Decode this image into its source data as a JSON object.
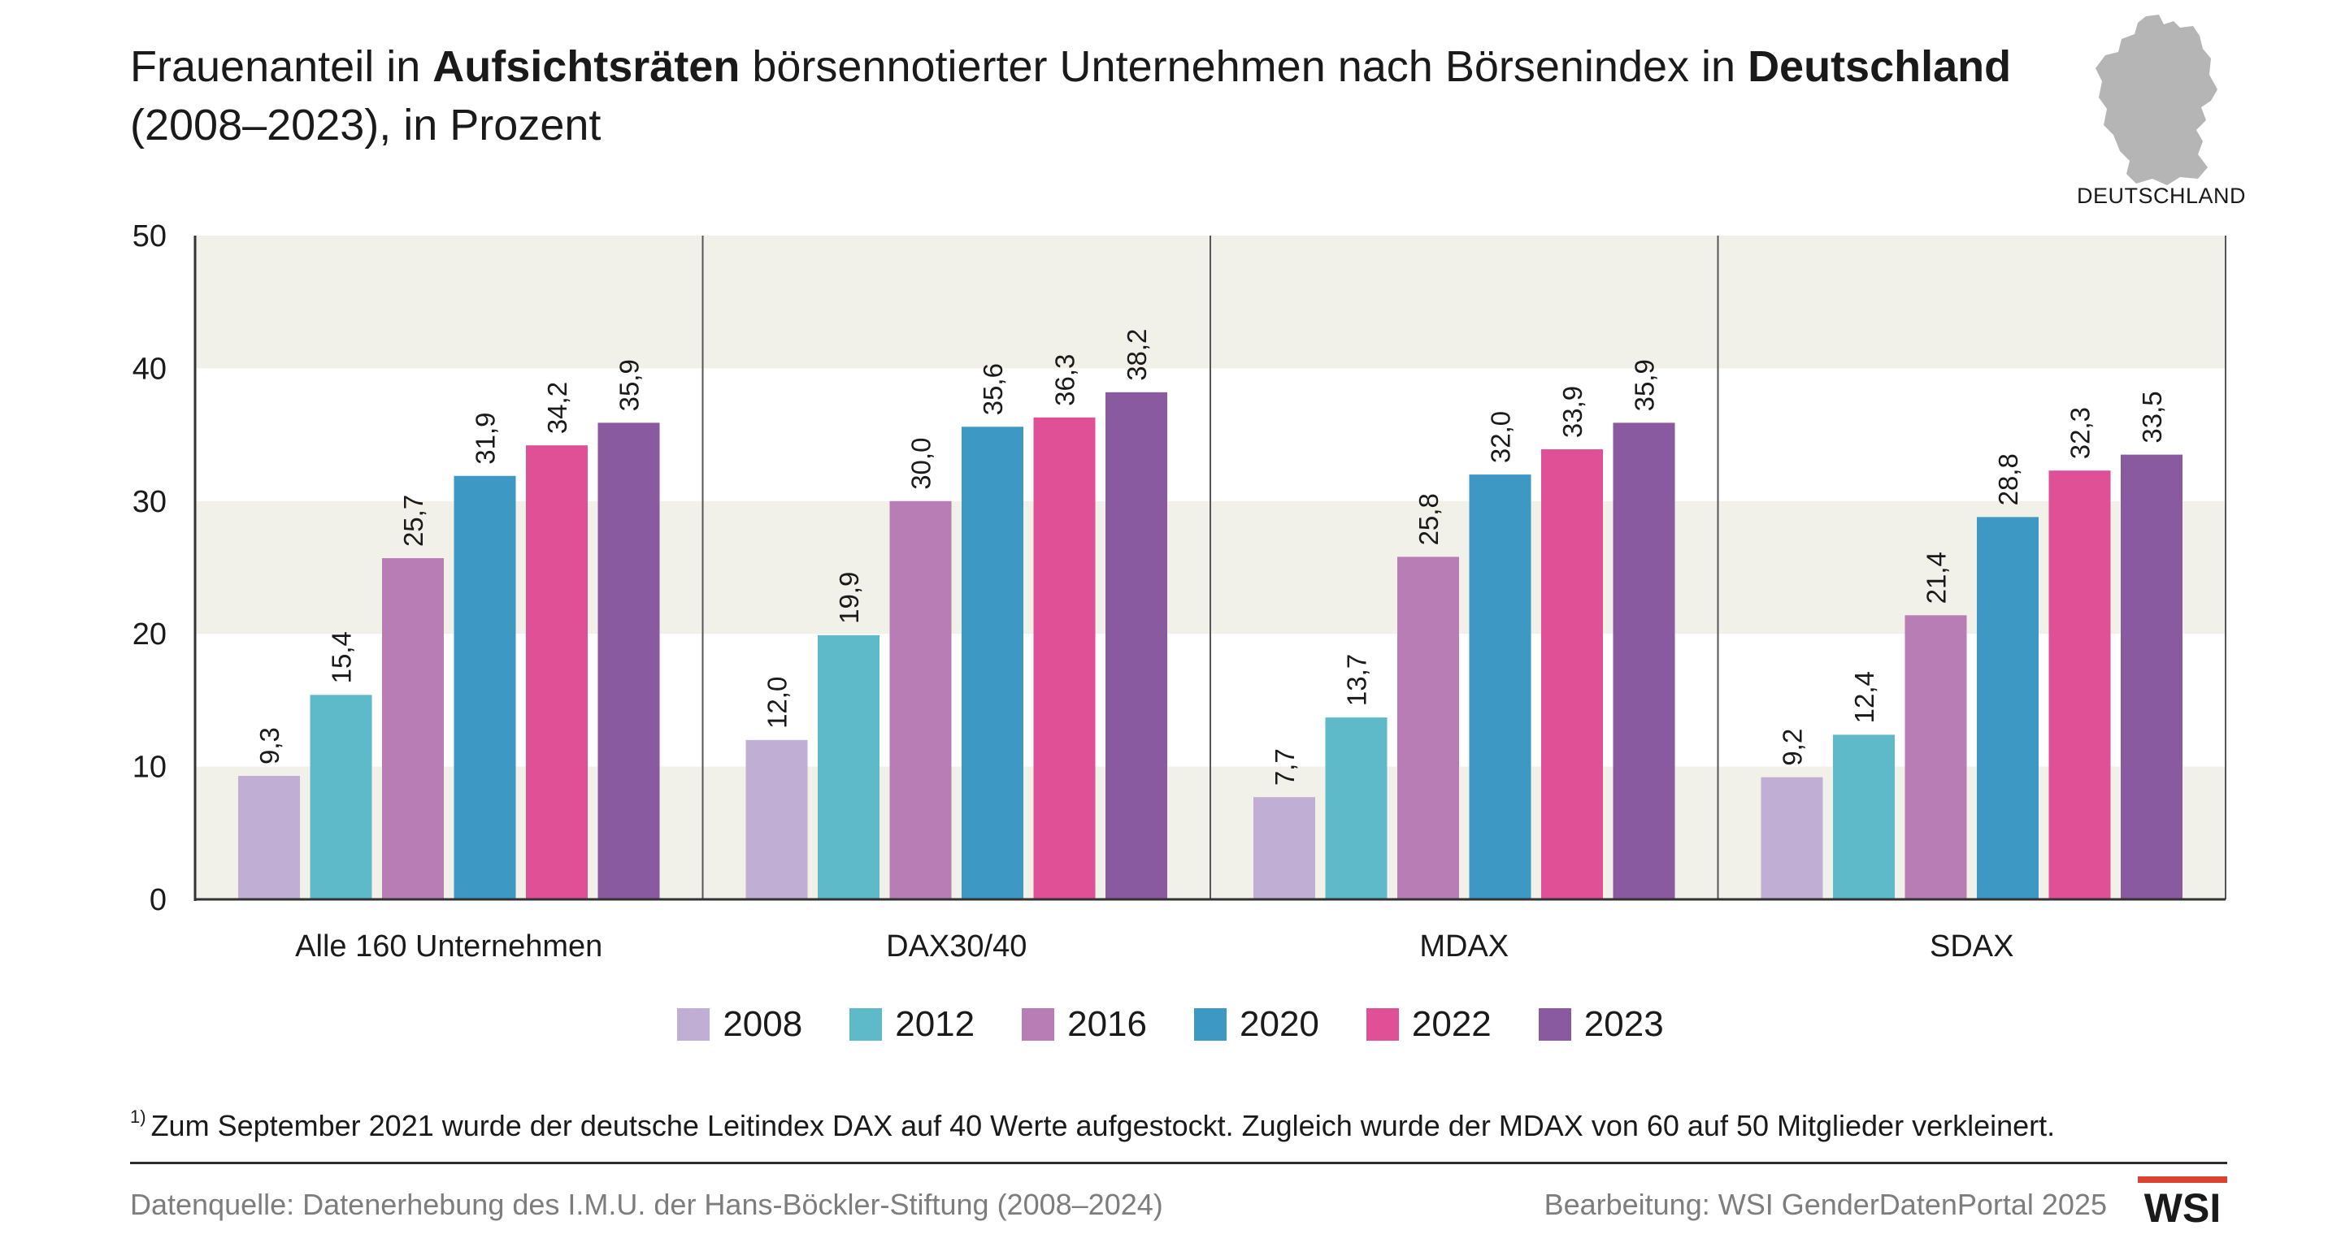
{
  "title": {
    "t1": "Frauenanteil in ",
    "b1": "Aufsichtsräten",
    "t2": " börsennotierter Unternehmen nach Börsenindex in ",
    "b2": "Deutschland",
    "line2": "(2008–2023), in Prozent"
  },
  "country_label": "DEUTSCHLAND",
  "footnote": {
    "marker": "1)",
    "text": "Zum September 2021 wurde der deutsche Leitindex DAX auf 40 Werte aufgestockt. Zugleich wurde der MDAX von 60 auf 50 Mitglieder verkleinert."
  },
  "source": "Datenquelle: Datenerhebung des I.M.U. der Hans-Böckler-Stiftung (2008–2024)",
  "credit": "Bearbeitung: WSI GenderDatenPortal 2025",
  "logo_text": "WSI",
  "colors": {
    "band": "#f1f1ea",
    "axis": "#333333",
    "logo_red": "#d9432f",
    "map_gray": "#b5b5b5"
  },
  "chart_data": {
    "type": "bar",
    "title": "Frauenanteil in Aufsichtsräten börsennotierter Unternehmen nach Börsenindex in Deutschland (2008–2023), in Prozent",
    "xlabel": "",
    "ylabel": "",
    "ylim": [
      0,
      50
    ],
    "yticks": [
      0,
      10,
      20,
      30,
      40,
      50
    ],
    "categories": [
      "Alle 160 Unternehmen",
      "DAX30/40",
      "MDAX",
      "SDAX"
    ],
    "series": [
      {
        "name": "2008",
        "color": "#c1aed4",
        "values": [
          9.3,
          12.0,
          7.7,
          9.2
        ],
        "labels": [
          "9,3",
          "12,0",
          "7,7",
          "9,2"
        ]
      },
      {
        "name": "2012",
        "color": "#5ebac8",
        "values": [
          15.4,
          19.9,
          13.7,
          12.4
        ],
        "labels": [
          "15,4",
          "19,9",
          "13,7",
          "12,4"
        ]
      },
      {
        "name": "2016",
        "color": "#b77db4",
        "values": [
          25.7,
          30.0,
          25.8,
          21.4
        ],
        "labels": [
          "25,7",
          "30,0",
          "25,8",
          "21,4"
        ]
      },
      {
        "name": "2020",
        "color": "#3e98c4",
        "values": [
          31.9,
          35.6,
          32.0,
          28.8
        ],
        "labels": [
          "31,9",
          "35,6",
          "32,0",
          "28,8"
        ]
      },
      {
        "name": "2022",
        "color": "#df5097",
        "values": [
          34.2,
          36.3,
          33.9,
          32.3
        ],
        "labels": [
          "34,2",
          "36,3",
          "33,9",
          "32,3"
        ]
      },
      {
        "name": "2023",
        "color": "#8a5aa1",
        "values": [
          35.9,
          38.2,
          35.9,
          33.5
        ],
        "labels": [
          "35,9",
          "38,2",
          "35,9",
          "33,5"
        ]
      }
    ],
    "grid": false,
    "alternating_bands": true,
    "legend_position": "bottom-center"
  }
}
